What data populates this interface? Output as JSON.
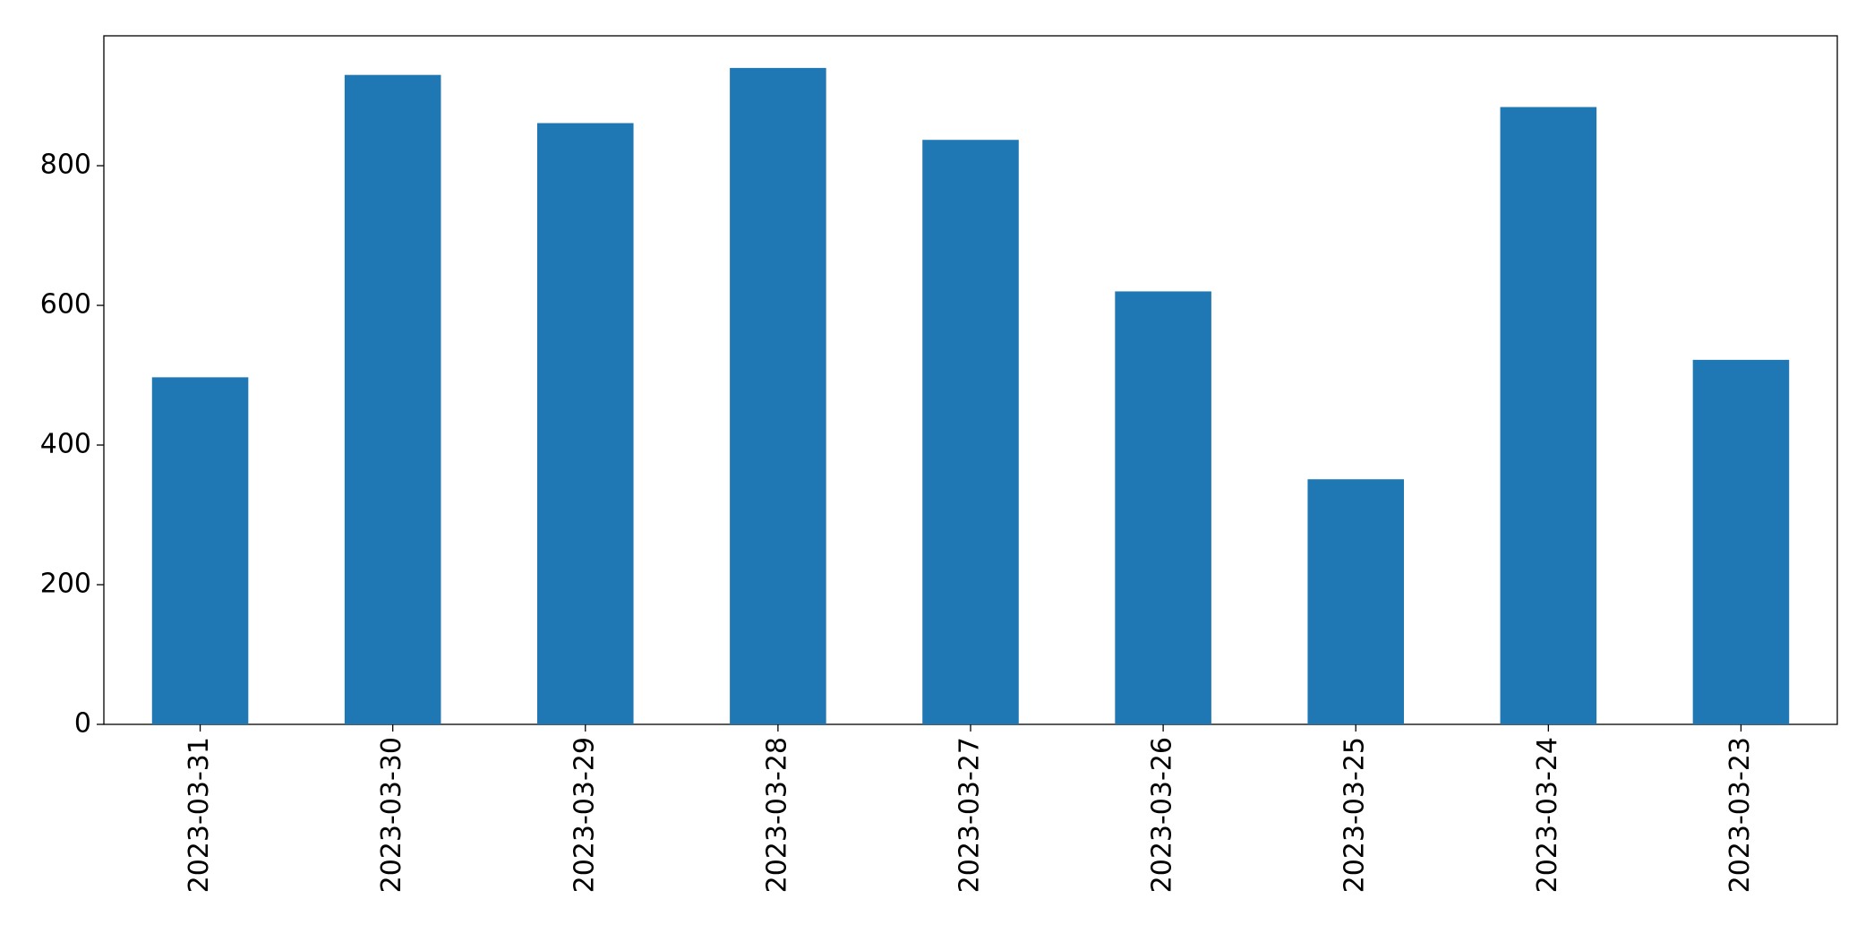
{
  "chart_data": {
    "type": "bar",
    "categories": [
      "2023-03-31",
      "2023-03-30",
      "2023-03-29",
      "2023-03-28",
      "2023-03-27",
      "2023-03-26",
      "2023-03-25",
      "2023-03-24",
      "2023-03-23"
    ],
    "values": [
      497,
      930,
      861,
      940,
      837,
      620,
      351,
      884,
      522
    ],
    "color": "#1f77b4",
    "ylim": [
      0,
      986
    ],
    "yticks": [
      0,
      200,
      400,
      600,
      800
    ],
    "grid": false
  }
}
